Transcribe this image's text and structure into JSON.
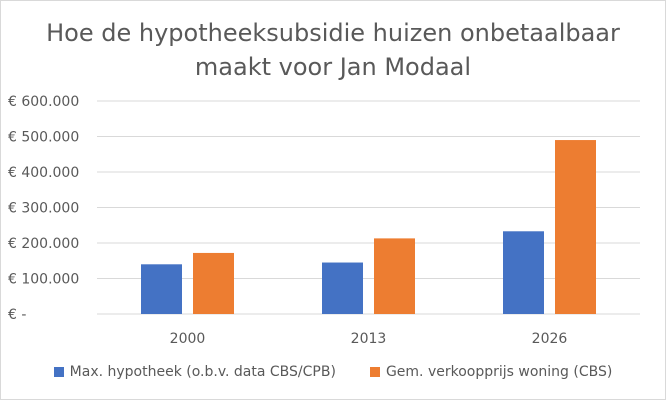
{
  "chart_data": {
    "type": "bar",
    "title": "Hoe de hypotheeksubsidie huizen onbetaalbaar\nmaakt voor Jan Modaal",
    "categories": [
      "2000",
      "2013",
      "2026"
    ],
    "series": [
      {
        "name": "Max. hypotheek (o.b.v. data CBS/CPB)",
        "color": "#4472C4",
        "values": [
          140000,
          145000,
          233000
        ]
      },
      {
        "name": "Gem. verkoopprijs woning (CBS)",
        "color": "#ED7D31",
        "values": [
          172000,
          213000,
          490000
        ]
      }
    ],
    "ylim": [
      0,
      600000
    ],
    "yticks": [
      0,
      100000,
      200000,
      300000,
      400000,
      500000,
      600000
    ],
    "ytick_labels": [
      "€ -",
      "€ 100.000",
      "€ 200.000",
      "€ 300.000",
      "€ 400.000",
      "€ 500.000",
      "€ 600.000"
    ],
    "grid": true,
    "legend_position": "bottom",
    "xlabel": "",
    "ylabel": ""
  }
}
